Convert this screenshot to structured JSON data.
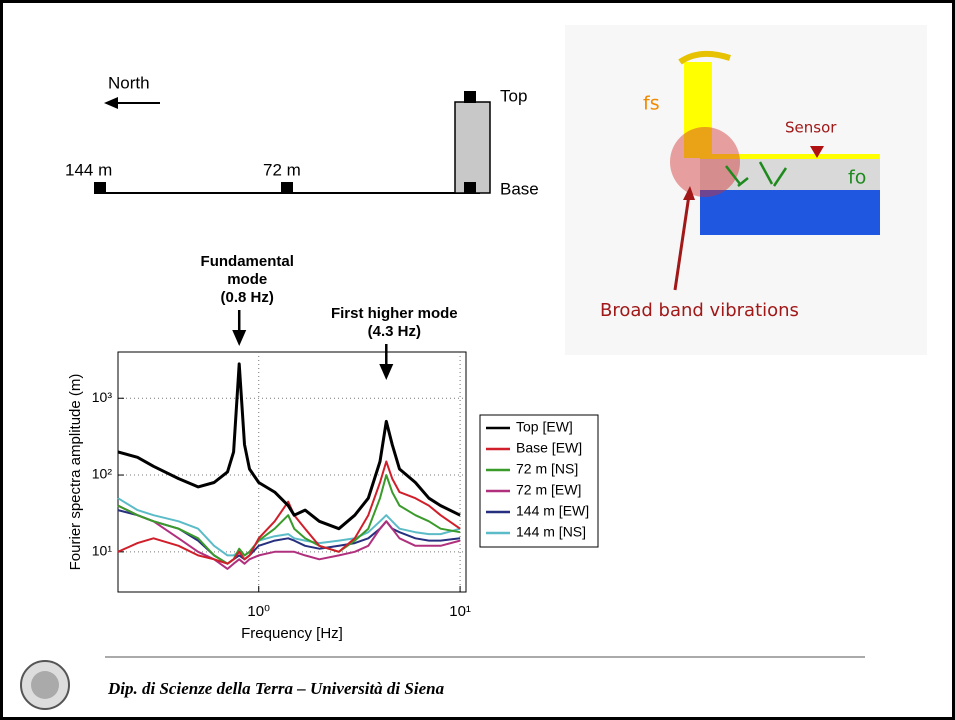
{
  "diagram_left": {
    "north": "North",
    "points": [
      "144 m",
      "72 m"
    ],
    "top": "Top",
    "base": "Base"
  },
  "diagram_right": {
    "fs": "fs",
    "sensor": "Sensor",
    "fo": "fo",
    "caption": "Broad band vibrations"
  },
  "chart_data": {
    "type": "line",
    "xlabel": "Frequency [Hz]",
    "ylabel": "Fourier spectra amplitude (m)",
    "log_x": true,
    "log_y": true,
    "grid": true,
    "xlim": [
      0.2,
      10.7
    ],
    "ylim": [
      3,
      4000
    ],
    "xticks": [
      {
        "value": 1,
        "label": "10⁰"
      },
      {
        "value": 10,
        "label": "10¹"
      }
    ],
    "yticks": [
      {
        "value": 10,
        "label": "10¹"
      },
      {
        "value": 100,
        "label": "10²"
      },
      {
        "value": 1000,
        "label": "10³"
      }
    ],
    "annotations": [
      {
        "lines": [
          "Fundamental",
          "mode",
          "(0.8 Hz)"
        ],
        "x": 0.8
      },
      {
        "lines": [
          "First higher mode",
          "(4.3 Hz)"
        ],
        "x": 4.3
      }
    ],
    "x": [
      0.2,
      0.25,
      0.3,
      0.4,
      0.5,
      0.6,
      0.7,
      0.75,
      0.8,
      0.85,
      0.9,
      1.0,
      1.2,
      1.4,
      1.5,
      1.7,
      2,
      2.5,
      3,
      3.5,
      4,
      4.3,
      4.6,
      5,
      6,
      7,
      8,
      10
    ],
    "series": [
      {
        "name": "Top [EW]",
        "color": "#000000",
        "values": [
          200,
          170,
          130,
          90,
          70,
          80,
          110,
          200,
          2800,
          250,
          120,
          80,
          60,
          40,
          30,
          35,
          25,
          20,
          30,
          50,
          150,
          500,
          250,
          120,
          80,
          50,
          40,
          30
        ]
      },
      {
        "name": "Base [EW]",
        "color": "#d01f2a",
        "values": [
          10,
          13,
          15,
          12,
          9,
          8,
          7,
          8,
          10,
          8,
          9,
          15,
          25,
          45,
          30,
          20,
          12,
          10,
          15,
          30,
          80,
          150,
          90,
          60,
          50,
          40,
          30,
          20
        ]
      },
      {
        "name": "72 m [NS]",
        "color": "#3a9a2a",
        "values": [
          40,
          30,
          25,
          20,
          15,
          9,
          7,
          8,
          11,
          9,
          10,
          14,
          20,
          30,
          20,
          15,
          12,
          10,
          14,
          20,
          50,
          100,
          60,
          40,
          30,
          25,
          20,
          18
        ]
      },
      {
        "name": "72 m [EW]",
        "color": "#b0307e",
        "values": [
          40,
          30,
          25,
          15,
          10,
          8,
          6,
          7,
          8,
          7,
          8,
          9,
          10,
          10,
          10,
          9,
          8,
          9,
          10,
          12,
          20,
          25,
          20,
          15,
          12,
          12,
          12,
          14
        ]
      },
      {
        "name": "144 m [EW]",
        "color": "#26307e",
        "values": [
          35,
          30,
          25,
          20,
          14,
          9,
          7,
          8,
          9,
          8,
          9,
          12,
          14,
          15,
          14,
          12,
          11,
          12,
          13,
          15,
          20,
          25,
          20,
          18,
          15,
          14,
          14,
          15
        ]
      },
      {
        "name": "144 m [NS]",
        "color": "#5bbcc8",
        "values": [
          50,
          35,
          30,
          25,
          20,
          12,
          9,
          9,
          10,
          9,
          10,
          14,
          16,
          17,
          15,
          14,
          13,
          14,
          15,
          18,
          25,
          30,
          25,
          20,
          18,
          17,
          17,
          20
        ]
      }
    ]
  },
  "footer": "Dip. di Scienze della Terra – Università di Siena"
}
